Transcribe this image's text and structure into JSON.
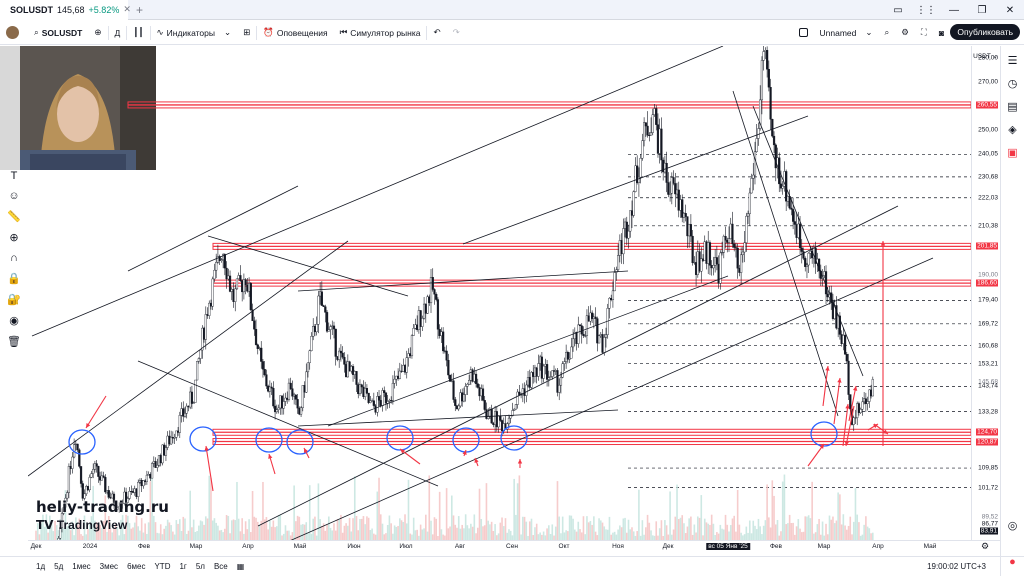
{
  "tab": {
    "symbol": "SOLUSDT",
    "price": "145,68",
    "change": "+5.82%"
  },
  "toolbar": {
    "symbol": "SOLUSDT",
    "interval": "Д",
    "indicators": "Индикаторы",
    "alerts": "Оповещения",
    "replay": "Симулятор рынка",
    "layout_name": "Unnamed",
    "publish": "Опубликовать"
  },
  "axis": {
    "currency": "USDT",
    "labels": [
      {
        "v": "280,00",
        "p": 280,
        "t": "plain"
      },
      {
        "v": "270,00",
        "p": 270,
        "t": "plain"
      },
      {
        "v": "260,55",
        "p": 260.55,
        "t": "hi"
      },
      {
        "v": "250,00",
        "p": 250,
        "t": "plain"
      },
      {
        "v": "240,05",
        "p": 240.05,
        "t": "plain"
      },
      {
        "v": "230,68",
        "p": 230.68,
        "t": "plain"
      },
      {
        "v": "222,03",
        "p": 222.03,
        "t": "plain"
      },
      {
        "v": "210,38",
        "p": 210.38,
        "t": "plain"
      },
      {
        "v": "201,85",
        "p": 201.85,
        "t": "hi"
      },
      {
        "v": "190,00",
        "p": 190,
        "t": "gray"
      },
      {
        "v": "186,60",
        "p": 186.6,
        "t": "hi"
      },
      {
        "v": "179,40",
        "p": 179.4,
        "t": "plain"
      },
      {
        "v": "169,72",
        "p": 169.72,
        "t": "plain"
      },
      {
        "v": "160,68",
        "p": 160.68,
        "t": "plain"
      },
      {
        "v": "153,21",
        "p": 153.21,
        "t": "plain"
      },
      {
        "v": "145,68",
        "p": 145.68,
        "t": "gray"
      },
      {
        "v": "143,74",
        "p": 143.74,
        "t": "plain"
      },
      {
        "v": "133,28",
        "p": 133.28,
        "t": "plain"
      },
      {
        "v": "124,70",
        "p": 124.7,
        "t": "hi"
      },
      {
        "v": "120,87",
        "p": 120.87,
        "t": "hi"
      },
      {
        "v": "109,85",
        "p": 109.85,
        "t": "plain"
      },
      {
        "v": "101,72",
        "p": 101.72,
        "t": "plain"
      },
      {
        "v": "89,52",
        "p": 89.52,
        "t": "gray"
      },
      {
        "v": "86,77",
        "p": 86.77,
        "t": "plain"
      },
      {
        "v": "83,91",
        "p": 83.91,
        "t": "dark"
      }
    ],
    "months": [
      "Дек",
      "2024",
      "Фев",
      "Мар",
      "Апр",
      "Май",
      "Июн",
      "Июл",
      "Авг",
      "Сен",
      "Окт",
      "Ноя",
      "Дек",
      "вс 05 Янв '25",
      "Фев",
      "Мар",
      "Апр",
      "Май"
    ]
  },
  "chart_data": {
    "type": "candlestick",
    "symbol": "SOLUSDT",
    "interval": "Д",
    "currency": "USDT",
    "ylim": [
      80,
      285
    ],
    "levels_red": [
      260.55,
      201.85,
      186.6,
      124.7,
      120.87
    ],
    "levels_dashed": [
      240.05,
      230.68,
      222.03,
      210.38,
      179.4,
      169.72,
      160.68,
      153.21,
      143.74,
      133.28,
      109.85,
      101.72
    ],
    "price_path": [
      {
        "m": 0.0,
        "p": 68
      },
      {
        "m": 0.4,
        "p": 75
      },
      {
        "m": 0.75,
        "p": 125
      },
      {
        "m": 0.9,
        "p": 98
      },
      {
        "m": 1.1,
        "p": 110
      },
      {
        "m": 1.5,
        "p": 95
      },
      {
        "m": 1.9,
        "p": 100
      },
      {
        "m": 2.3,
        "p": 112
      },
      {
        "m": 2.7,
        "p": 128
      },
      {
        "m": 3.0,
        "p": 140
      },
      {
        "m": 3.25,
        "p": 175
      },
      {
        "m": 3.55,
        "p": 202
      },
      {
        "m": 3.75,
        "p": 180
      },
      {
        "m": 4.0,
        "p": 190
      },
      {
        "m": 4.3,
        "p": 150
      },
      {
        "m": 4.6,
        "p": 134
      },
      {
        "m": 4.85,
        "p": 145
      },
      {
        "m": 5.0,
        "p": 130
      },
      {
        "m": 5.4,
        "p": 180
      },
      {
        "m": 5.8,
        "p": 155
      },
      {
        "m": 6.1,
        "p": 145
      },
      {
        "m": 6.4,
        "p": 135
      },
      {
        "m": 6.7,
        "p": 140
      },
      {
        "m": 7.0,
        "p": 150
      },
      {
        "m": 7.3,
        "p": 172
      },
      {
        "m": 7.55,
        "p": 185
      },
      {
        "m": 7.8,
        "p": 155
      },
      {
        "m": 8.0,
        "p": 135
      },
      {
        "m": 8.3,
        "p": 150
      },
      {
        "m": 8.6,
        "p": 132
      },
      {
        "m": 8.9,
        "p": 128
      },
      {
        "m": 9.2,
        "p": 140
      },
      {
        "m": 9.6,
        "p": 152
      },
      {
        "m": 9.95,
        "p": 145
      },
      {
        "m": 10.2,
        "p": 160
      },
      {
        "m": 10.55,
        "p": 172
      },
      {
        "m": 10.8,
        "p": 162
      },
      {
        "m": 11.05,
        "p": 195
      },
      {
        "m": 11.3,
        "p": 215
      },
      {
        "m": 11.55,
        "p": 245
      },
      {
        "m": 11.75,
        "p": 258
      },
      {
        "m": 12.0,
        "p": 230
      },
      {
        "m": 12.3,
        "p": 218
      },
      {
        "m": 12.55,
        "p": 195
      },
      {
        "m": 12.8,
        "p": 200
      },
      {
        "m": 13.0,
        "p": 192
      },
      {
        "m": 13.2,
        "p": 210
      },
      {
        "m": 13.4,
        "p": 188
      },
      {
        "m": 13.75,
        "p": 250
      },
      {
        "m": 13.85,
        "p": 285
      },
      {
        "m": 14.05,
        "p": 240
      },
      {
        "m": 14.3,
        "p": 225
      },
      {
        "m": 14.6,
        "p": 200
      },
      {
        "m": 14.9,
        "p": 195
      },
      {
        "m": 15.2,
        "p": 175
      },
      {
        "m": 15.4,
        "p": 160
      },
      {
        "m": 15.55,
        "p": 130
      },
      {
        "m": 15.8,
        "p": 138
      },
      {
        "m": 15.95,
        "p": 145.68
      }
    ]
  },
  "overlay": {
    "watermark": "heliy-trading.ru",
    "tv_logo": "TradingView"
  },
  "bottom": {
    "ranges": [
      "1д",
      "5д",
      "1мес",
      "3мес",
      "6мес",
      "YTD",
      "1г",
      "5л",
      "Все"
    ],
    "clock": "19:00:02 UTC+3"
  }
}
